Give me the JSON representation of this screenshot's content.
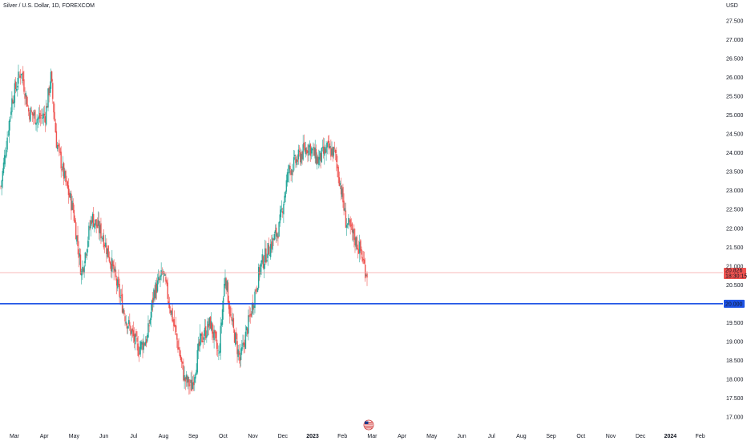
{
  "header": {
    "symbol": "Silver / U.S. Dollar, 1D, FOREXCOM",
    "currency": "USD"
  },
  "colors": {
    "up": "#26a69a",
    "down": "#ef5350",
    "hline": "#1e53e5",
    "last_price_line": "#f5a3a3"
  },
  "chart_data": {
    "type": "candlestick",
    "ylim": [
      16.8,
      27.6
    ],
    "y_ticks": [
      "27.500",
      "27.000",
      "26.500",
      "26.000",
      "25.500",
      "25.000",
      "24.500",
      "24.000",
      "23.500",
      "23.000",
      "22.500",
      "22.000",
      "21.500",
      "21.000",
      "20.500",
      "20.000",
      "19.500",
      "19.000",
      "18.500",
      "18.000",
      "17.500",
      "17.000"
    ],
    "x_ticks": [
      "Mar",
      "Apr",
      "May",
      "Jun",
      "Jul",
      "Aug",
      "Sep",
      "Oct",
      "Nov",
      "Dec",
      "2023",
      "Feb",
      "Mar",
      "Apr",
      "May",
      "Jun",
      "Jul",
      "Aug",
      "Sep",
      "Oct",
      "Nov",
      "Dec",
      "2024",
      "Feb"
    ],
    "bold_x_ticks": [
      "2023",
      "2024"
    ],
    "price_waypoints": [
      [
        0,
        23.1
      ],
      [
        12,
        25.4
      ],
      [
        22,
        26.2
      ],
      [
        30,
        25.1
      ],
      [
        40,
        24.9
      ],
      [
        48,
        25.0
      ],
      [
        54,
        26.0
      ],
      [
        60,
        24.3
      ],
      [
        70,
        23.2
      ],
      [
        78,
        22.5
      ],
      [
        87,
        20.8
      ],
      [
        98,
        22.3
      ],
      [
        110,
        21.8
      ],
      [
        120,
        21.0
      ],
      [
        135,
        19.6
      ],
      [
        148,
        18.8
      ],
      [
        158,
        19.1
      ],
      [
        165,
        20.3
      ],
      [
        175,
        20.8
      ],
      [
        188,
        19.3
      ],
      [
        198,
        18.0
      ],
      [
        206,
        17.8
      ],
      [
        215,
        19.0
      ],
      [
        226,
        19.5
      ],
      [
        235,
        18.6
      ],
      [
        242,
        20.8
      ],
      [
        248,
        19.6
      ],
      [
        258,
        18.5
      ],
      [
        270,
        19.8
      ],
      [
        280,
        21.0
      ],
      [
        290,
        21.5
      ],
      [
        300,
        22.0
      ],
      [
        310,
        23.5
      ],
      [
        322,
        23.9
      ],
      [
        332,
        24.2
      ],
      [
        342,
        23.8
      ],
      [
        352,
        24.1
      ],
      [
        360,
        24.0
      ],
      [
        366,
        23.2
      ],
      [
        372,
        22.2
      ],
      [
        380,
        21.8
      ],
      [
        388,
        21.4
      ],
      [
        393,
        20.9
      ],
      [
        395,
        20.83
      ]
    ],
    "last_price": {
      "value": "20.826",
      "countdown": "18:30:15"
    },
    "horizontal_line": {
      "value": 20.0,
      "label": "20.000"
    },
    "flag_icon": "us-flag-icon"
  }
}
